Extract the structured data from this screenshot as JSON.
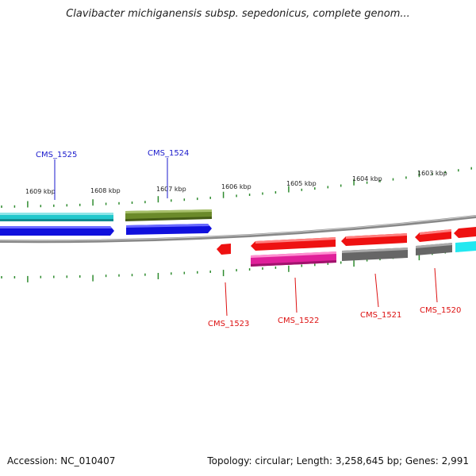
{
  "title": "Clavibacter michiganensis subsp. sepedonicus, complete genom...",
  "footer": {
    "accession": "Accession: NC_010407",
    "summary": "Topology: circular; Length: 3,258,645 bp; Genes: 2,991"
  },
  "colors": {
    "axis": "#888888",
    "tick": "#2e8b2e",
    "label_top": "#1a1acc",
    "label_bottom": "#dd1111",
    "cyan": "#22c8cc",
    "olive": "#6b8a2a",
    "blue": "#1010dd",
    "red": "#ee1111",
    "pink": "#e0209a",
    "gray": "#666666"
  },
  "scale_labels": [
    "1609 kbp",
    "1608 kbp",
    "1607 kbp",
    "1606 kbp",
    "1605 kbp",
    "1604 kbp",
    "1603 kbp"
  ],
  "gene_labels_top": [
    "CMS_1525",
    "CMS_1524"
  ],
  "gene_labels_bottom": [
    "CMS_1523",
    "CMS_1522",
    "CMS_1521",
    "CMS_1520"
  ]
}
